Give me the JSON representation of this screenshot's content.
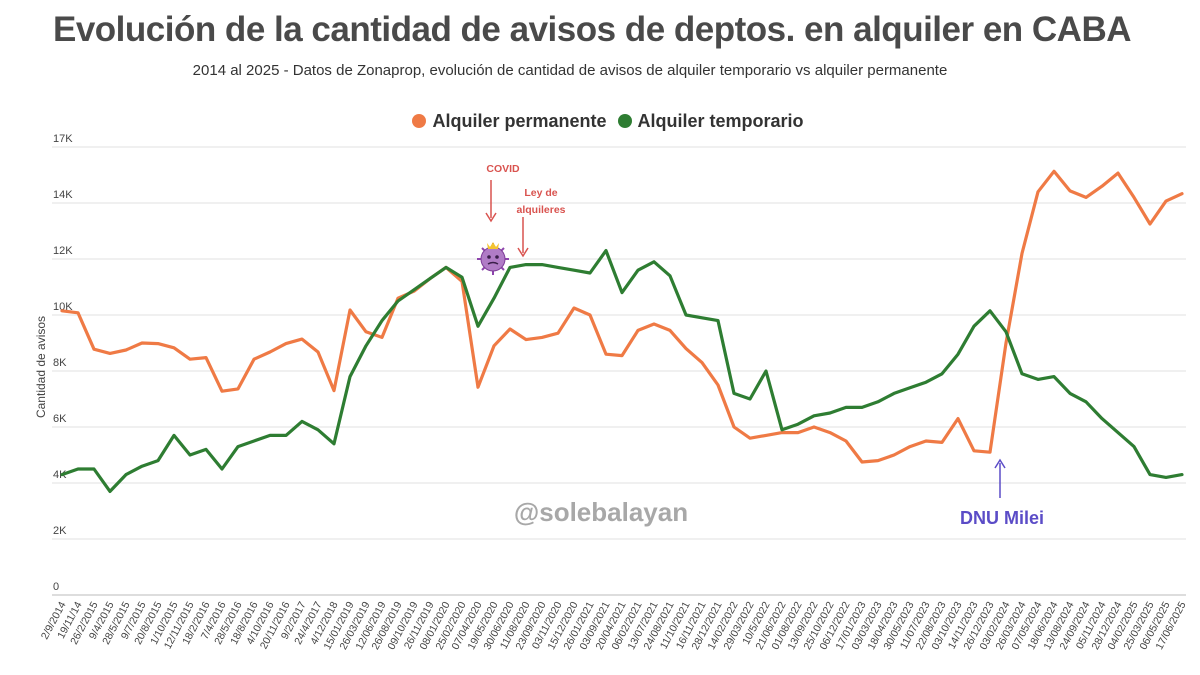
{
  "chart_data": {
    "type": "line",
    "title": "Evolución de la cantidad de avisos de deptos. en alquiler en CABA",
    "subtitle": "2014 al 2025 - Datos de Zonaprop, evolución de cantidad de avisos de  alquiler temporario vs alquiler permanente",
    "ylabel": "Cantidad de avisos",
    "xlabel": "",
    "ylim": [
      0,
      17500
    ],
    "y_ticks": [
      0,
      2000,
      4000,
      6000,
      8000,
      10000,
      12000,
      14000,
      17000
    ],
    "y_tick_labels": [
      "0",
      "2K",
      "4K",
      "6K",
      "8K",
      "10K",
      "12K",
      "14K",
      "17K"
    ],
    "grid": true,
    "legend_position": "top-center",
    "x_ticks": [
      "2/9/2014",
      "19/11/14",
      "26/2/2015",
      "9/4/2015",
      "28/5/2015",
      "9/7/2015",
      "20/8/2015",
      "1/10/2015",
      "12/11/2015",
      "18/2/2016",
      "7/4/2016",
      "28/5/2016",
      "18/8/2016",
      "4/10/2016",
      "20/11/2016",
      "9/2/2017",
      "24/4/2017",
      "4/12/2018",
      "15/01/2019",
      "26/03/2019",
      "12/06/2019",
      "26/08/2019",
      "09/10/2019",
      "26/11/2019",
      "08/01/2020",
      "25/02/2020",
      "07/04/2020",
      "19/05/2020",
      "30/06/2020",
      "11/08/2020",
      "23/09/2020",
      "03/11/2020",
      "15/12/2020",
      "26/01/2021",
      "03/09/2021",
      "20/04/2021",
      "06/02/2021",
      "13/07/2021",
      "24/08/2021",
      "11/10/2021",
      "16/11/2021",
      "28/12/2021",
      "14/02/2022",
      "29/03/2022",
      "10/5/2022",
      "21/06/2022",
      "01/08/2022",
      "13/09/2022",
      "25/10/2022",
      "06/12/2022",
      "17/01/2023",
      "03/03/2023",
      "18/04/2023",
      "30/05/2023",
      "11/07/2023",
      "22/08/2023",
      "03/10/2023",
      "14/11/2023",
      "26/12/2023",
      "03/02/2024",
      "26/03/2024",
      "07/05/2024",
      "18/06/2024",
      "13/08/2024",
      "24/09/2024",
      "05/11/2024",
      "28/12/2024",
      "04/02/2025",
      "25/03/2025",
      "06/05/2025",
      "17/06/2025"
    ],
    "series": [
      {
        "name": "Alquiler permanente",
        "color": "#ef7a45",
        "x": [
          0,
          1,
          2,
          3,
          4,
          5,
          6,
          7,
          8,
          9,
          10,
          11,
          12,
          13,
          14,
          15,
          16,
          17,
          18,
          19,
          20,
          21,
          22,
          23,
          24,
          25,
          26,
          27,
          28,
          29,
          30,
          31,
          32,
          33,
          34,
          35,
          36,
          37,
          38,
          39,
          40,
          41,
          42,
          43,
          44,
          45,
          46,
          47,
          48,
          49,
          50,
          51,
          52,
          53,
          54,
          55,
          56,
          57,
          58,
          59,
          60,
          61,
          62,
          63,
          64,
          65,
          66,
          67,
          68,
          69,
          70
        ],
        "values": [
          10150,
          10080,
          8780,
          8630,
          8750,
          9000,
          8980,
          8830,
          8420,
          8480,
          7280,
          7360,
          8420,
          8680,
          8980,
          9140,
          8680,
          7300,
          10180,
          9400,
          9200,
          10600,
          10850,
          11300,
          11700,
          11200,
          7420,
          8900,
          9500,
          9120,
          9200,
          9350,
          10250,
          10000,
          8600,
          8550,
          9450,
          9680,
          9450,
          8800,
          8300,
          7500,
          6000,
          5600,
          5700,
          5800,
          5800,
          6000,
          5800,
          5500,
          4750,
          4800,
          5000,
          5300,
          5500,
          5450,
          6300,
          5150,
          5100,
          9000,
          12200,
          14600,
          15700,
          14650,
          14300,
          14900,
          15600,
          14300,
          13250,
          14100,
          14500
        ]
      },
      {
        "name": "Alquiler temporario",
        "color": "#2e7d32",
        "x": [
          0,
          1,
          2,
          3,
          4,
          5,
          6,
          7,
          8,
          9,
          10,
          11,
          12,
          13,
          14,
          15,
          16,
          17,
          18,
          19,
          20,
          21,
          22,
          23,
          24,
          25,
          26,
          27,
          28,
          29,
          30,
          31,
          32,
          33,
          34,
          35,
          36,
          37,
          38,
          39,
          40,
          41,
          42,
          43,
          44,
          45,
          46,
          47,
          48,
          49,
          50,
          51,
          52,
          53,
          54,
          55,
          56,
          57,
          58,
          59,
          60,
          61,
          62,
          63,
          64,
          65,
          66,
          67,
          68,
          69,
          70
        ],
        "values": [
          4300,
          4500,
          4500,
          3700,
          4300,
          4600,
          4800,
          5700,
          5000,
          5200,
          4500,
          5300,
          5500,
          5700,
          5700,
          6200,
          5900,
          5400,
          7800,
          8900,
          9800,
          10500,
          10900,
          11300,
          11700,
          11350,
          9600,
          10600,
          11700,
          11800,
          11800,
          11700,
          11600,
          11500,
          12300,
          10800,
          11600,
          11900,
          11400,
          10000,
          9900,
          9800,
          7200,
          7000,
          8000,
          5900,
          6100,
          6400,
          6500,
          6700,
          6700,
          6900,
          7200,
          7400,
          7600,
          7900,
          8600,
          9600,
          10150,
          9400,
          7900,
          7700,
          7800,
          7200,
          6900,
          6300,
          5800,
          5300,
          4300,
          4200,
          4300
        ]
      }
    ],
    "annotations": [
      {
        "text": "COVID",
        "color": "#d9534f",
        "points_at": "07/04/2020"
      },
      {
        "text": "Ley de",
        "color": "#d9534f",
        "points_at": "30/06/2020"
      },
      {
        "text": "alquileres",
        "color": "#d9534f",
        "points_at": "30/06/2020"
      },
      {
        "text": "DNU Milei",
        "color": "#5b4cc7",
        "points_at": "26/12/2023"
      }
    ],
    "watermark": "@solebalayan",
    "virus_icon": "virus-emoji-icon"
  }
}
